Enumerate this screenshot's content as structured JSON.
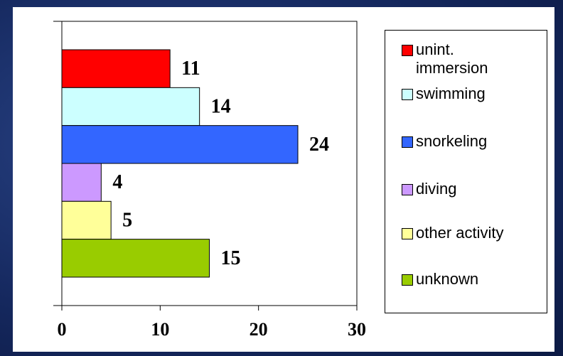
{
  "chart_data": {
    "type": "bar",
    "orientation": "horizontal",
    "categories": [
      "unint. immersion",
      "swimming",
      "snorkeling",
      "diving",
      "other activity",
      "unknown"
    ],
    "values": [
      11,
      14,
      24,
      4,
      5,
      15
    ],
    "colors": [
      "#ff0000",
      "#ccffff",
      "#3366ff",
      "#cc99ff",
      "#ffff99",
      "#99cc00"
    ],
    "xlim": [
      0,
      30
    ],
    "xticks": [
      0,
      10,
      20,
      30
    ],
    "legend": "right"
  }
}
